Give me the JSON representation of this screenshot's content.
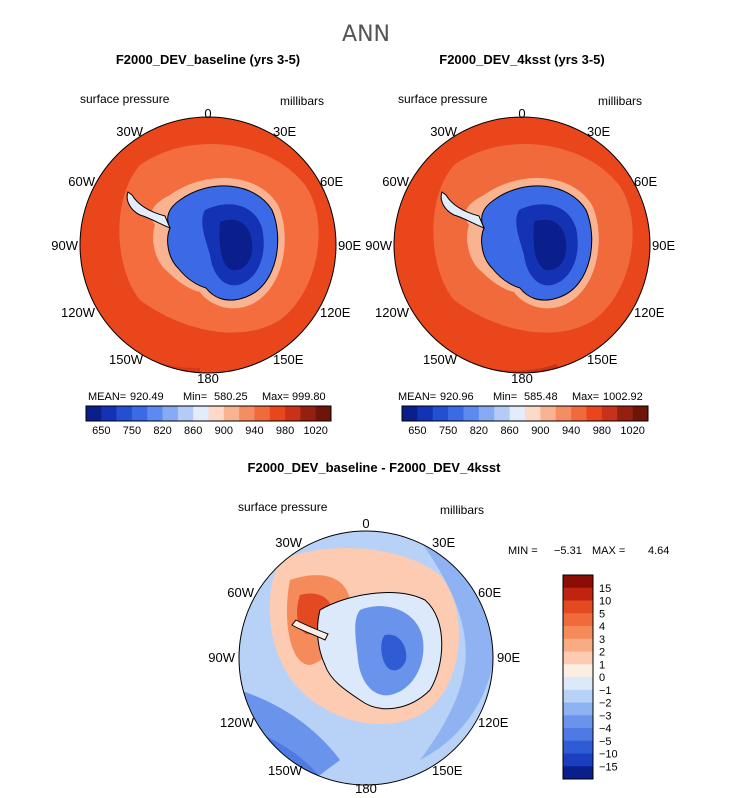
{
  "page_title": "ANN",
  "colors": {
    "orange_main": "#e9461c",
    "orange_light": "#f36d3e",
    "orange_deep": "#c8321a",
    "land_outline": "#000000"
  },
  "chart_data": [
    {
      "type": "polar-contour",
      "title": "F2000_DEV_baseline (yrs 3-5)",
      "variable": "surface pressure",
      "units": "millibars",
      "stats": {
        "mean_label": "MEAN=",
        "mean": "920.49",
        "min_label": "Min=",
        "min": "580.25",
        "max_label": "Max=",
        "max": "999.80"
      },
      "colorbar": {
        "levels": [
          650,
          700,
          750,
          800,
          820,
          840,
          860,
          880,
          900,
          920,
          940,
          960,
          980,
          1000,
          1020
        ],
        "tick_labels": [
          "650",
          "750",
          "820",
          "860",
          "900",
          "940",
          "980",
          "1020"
        ],
        "colors": [
          "#0a1e8c",
          "#1432b4",
          "#2350d2",
          "#3c6ae6",
          "#5b8af0",
          "#87aaf5",
          "#b4cbf8",
          "#e2ecfb",
          "#fcd9c8",
          "#f9b391",
          "#f58d63",
          "#f06a3c",
          "#e9461c",
          "#c8321a",
          "#96200f",
          "#6e1409"
        ]
      },
      "longitude_labels": [
        "0",
        "30E",
        "60E",
        "90E",
        "120E",
        "150E",
        "180",
        "150W",
        "120W",
        "90W",
        "60W",
        "30W"
      ]
    },
    {
      "type": "polar-contour",
      "title": "F2000_DEV_4ksst (yrs 3-5)",
      "variable": "surface pressure",
      "units": "millibars",
      "stats": {
        "mean_label": "MEAN=",
        "mean": "920.96",
        "min_label": "Min=",
        "min": "585.48",
        "max_label": "Max=",
        "max": "1002.92"
      },
      "colorbar": {
        "levels": [
          650,
          700,
          750,
          800,
          820,
          840,
          860,
          880,
          900,
          920,
          940,
          960,
          980,
          1000,
          1020
        ],
        "tick_labels": [
          "650",
          "750",
          "820",
          "860",
          "900",
          "940",
          "980",
          "1020"
        ],
        "colors": [
          "#0a1e8c",
          "#1432b4",
          "#2350d2",
          "#3c6ae6",
          "#5b8af0",
          "#87aaf5",
          "#b4cbf8",
          "#e2ecfb",
          "#fcd9c8",
          "#f9b391",
          "#f58d63",
          "#f06a3c",
          "#e9461c",
          "#c8321a",
          "#96200f",
          "#6e1409"
        ]
      },
      "longitude_labels": [
        "0",
        "30E",
        "60E",
        "90E",
        "120E",
        "150E",
        "180",
        "150W",
        "120W",
        "90W",
        "60W",
        "30W"
      ]
    },
    {
      "type": "polar-contour",
      "title": "F2000_DEV_baseline - F2000_DEV_4ksst",
      "variable": "surface pressure",
      "units": "millibars",
      "stats": {
        "min_label": "MIN =",
        "min": "−5.31",
        "max_label": "MAX =",
        "max": "4.64"
      },
      "colorbar": {
        "orientation": "vertical",
        "tick_labels": [
          "15",
          "10",
          "5",
          "4",
          "3",
          "2",
          "1",
          "0",
          "−1",
          "−2",
          "−3",
          "−4",
          "−5",
          "−10",
          "−15"
        ],
        "colors": [
          "#8b0e04",
          "#bf2410",
          "#e34a22",
          "#f06a3c",
          "#f58a5a",
          "#f9ab84",
          "#fccbb2",
          "#fdeee4",
          "#dce9fb",
          "#b8d2f7",
          "#8fb3f2",
          "#6a94ec",
          "#4f7ae4",
          "#2f5bd4",
          "#1b3fc0",
          "#0a1e8c"
        ]
      },
      "longitude_labels": [
        "0",
        "30E",
        "60E",
        "90E",
        "120E",
        "150E",
        "180",
        "150W",
        "120W",
        "90W",
        "60W",
        "30W"
      ]
    }
  ]
}
